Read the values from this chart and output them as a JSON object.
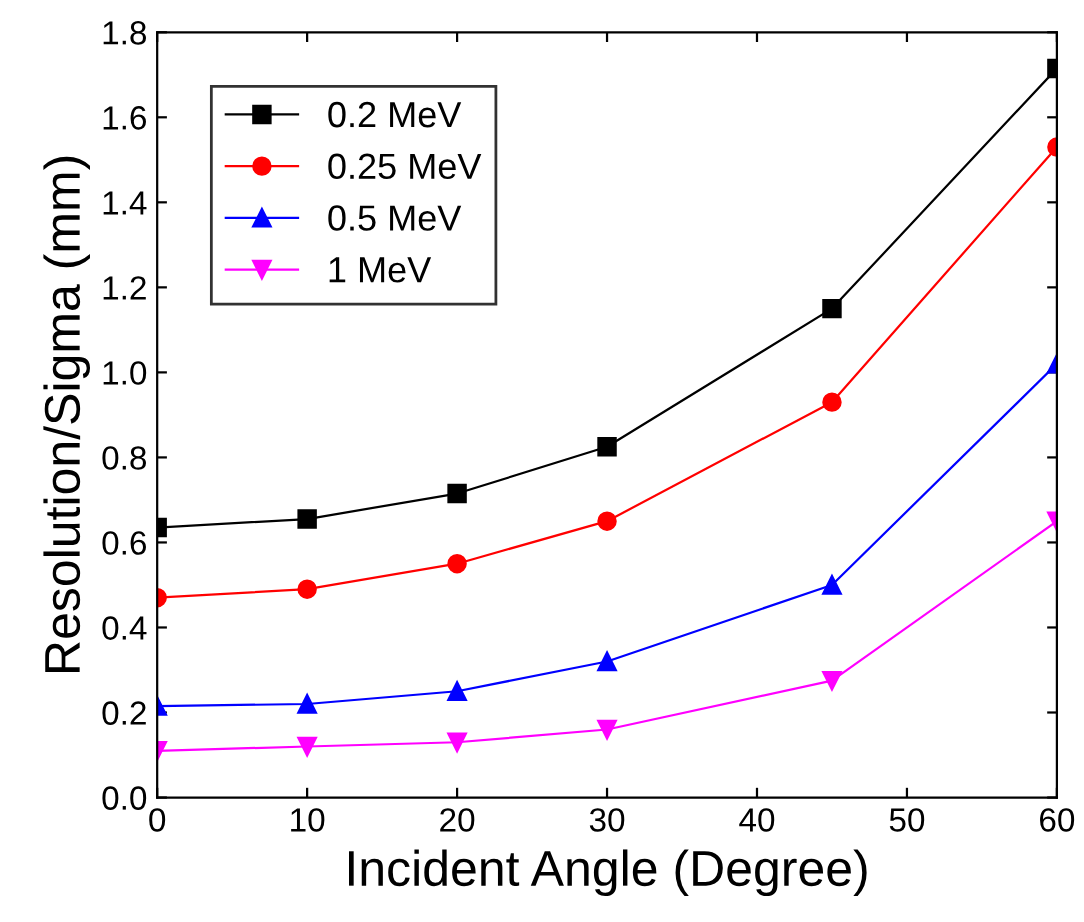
{
  "chart_data": {
    "type": "line",
    "xlabel": "Incident Angle (Degree)",
    "ylabel": "Resolution/Sigma (mm)",
    "x": [
      0,
      10,
      20,
      30,
      45,
      60
    ],
    "series": [
      {
        "name": "0.2 MeV",
        "color": "#000000",
        "marker": "square",
        "values": [
          0.635,
          0.655,
          0.715,
          0.825,
          1.15,
          1.715
        ]
      },
      {
        "name": "0.25 MeV",
        "color": "#ff0000",
        "marker": "circle",
        "values": [
          0.47,
          0.49,
          0.55,
          0.65,
          0.93,
          1.53
        ]
      },
      {
        "name": "0.5 MeV",
        "color": "#0000ff",
        "marker": "triangle",
        "values": [
          0.215,
          0.22,
          0.25,
          0.32,
          0.5,
          1.02
        ]
      },
      {
        "name": "1 MeV",
        "color": "#ff00ff",
        "marker": "triangle_down",
        "values": [
          0.11,
          0.12,
          0.13,
          0.16,
          0.275,
          0.65
        ]
      }
    ],
    "xlim": [
      0,
      60
    ],
    "xticks": [
      0,
      10,
      20,
      30,
      40,
      50,
      60
    ],
    "ylim": [
      0,
      1.8
    ],
    "yticks": [
      {
        "value": 0,
        "label": "0.0"
      },
      0.2,
      0.4,
      0.6,
      0.8,
      {
        "value": 1.0,
        "label": "1.0"
      },
      1.2,
      1.4,
      1.6,
      1.8
    ],
    "legend": "top left",
    "grid": false,
    "line_style": "solid"
  }
}
